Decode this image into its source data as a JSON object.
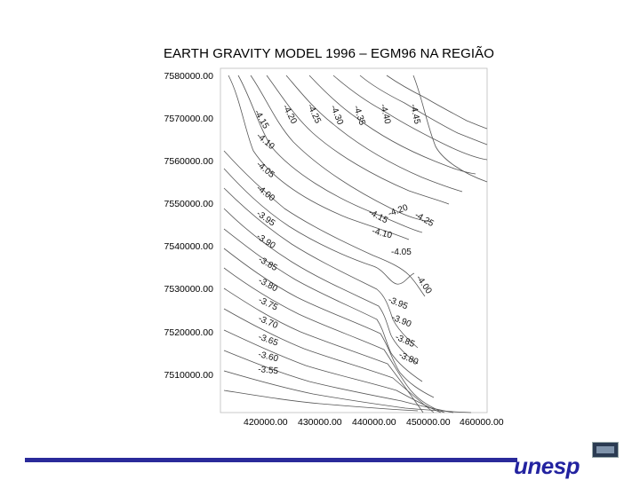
{
  "slide": {
    "title": "EARTH GRAVITY MODEL 1996 – EGM96  NA REGIÃO"
  },
  "map": {
    "y_ticks": [
      "7580000.00",
      "7570000.00",
      "7560000.00",
      "7550000.00",
      "7540000.00",
      "7530000.00",
      "7520000.00",
      "7510000.00"
    ],
    "x_ticks": [
      "420000.00",
      "430000.00",
      "440000.00",
      "450000.00",
      "460000.00"
    ],
    "contour_labels_top": [
      "-4.15",
      "-4.20",
      "-4.25",
      "-4.30",
      "-4.35",
      "-4.40",
      "-4.45"
    ],
    "contour_labels_left": [
      "-4.10",
      "-4.05",
      "-4.00",
      "-3.95",
      "-3.90",
      "-3.85",
      "-3.80",
      "-3.75",
      "-3.70",
      "-3.65",
      "-3.60",
      "-3.55"
    ],
    "contour_labels_center": [
      "-4.15",
      "-4.20",
      "-4.25",
      "-4.10",
      "-4.05",
      "-4.00",
      "-3.95",
      "-3.90",
      "-3.85",
      "-3.80"
    ]
  },
  "footer": {
    "logo_text": "unesp",
    "accent_color": "#2a2a9a"
  }
}
